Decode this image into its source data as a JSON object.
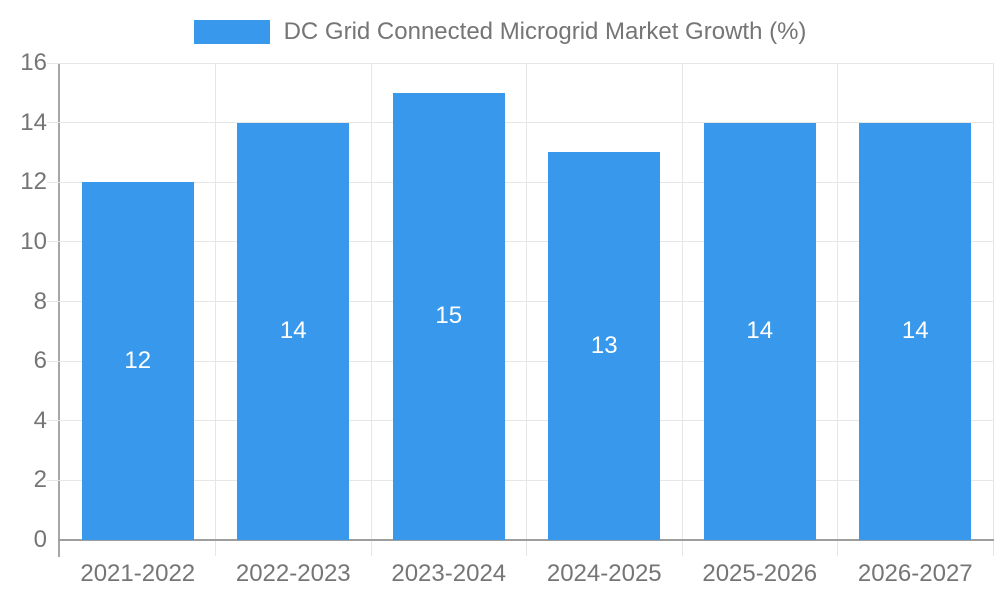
{
  "title": "DC Grid Connected Microgrid Market Growth (%)",
  "legend": {
    "label": "DC Grid Connected Microgrid Market Growth (%)",
    "swatch_color": "#3899EC"
  },
  "chart_data": {
    "type": "bar",
    "title": "DC Grid Connected Microgrid Market Growth (%)",
    "categories": [
      "2021-2022",
      "2022-2023",
      "2023-2024",
      "2024-2025",
      "2025-2026",
      "2026-2027"
    ],
    "values": [
      12,
      14,
      15,
      13,
      14,
      14
    ],
    "xlabel": "",
    "ylabel": "",
    "ylim": [
      0,
      16
    ],
    "yticks": [
      0,
      2,
      4,
      6,
      8,
      10,
      12,
      14,
      16
    ],
    "grid": true,
    "legend_position": "top",
    "bar_color": "#3899EC",
    "value_label_color": "#FFFFFF",
    "tick_label_color": "#757575",
    "gridline_color": "#E6E6E6",
    "axis_line_color": "#9E9E9E"
  }
}
